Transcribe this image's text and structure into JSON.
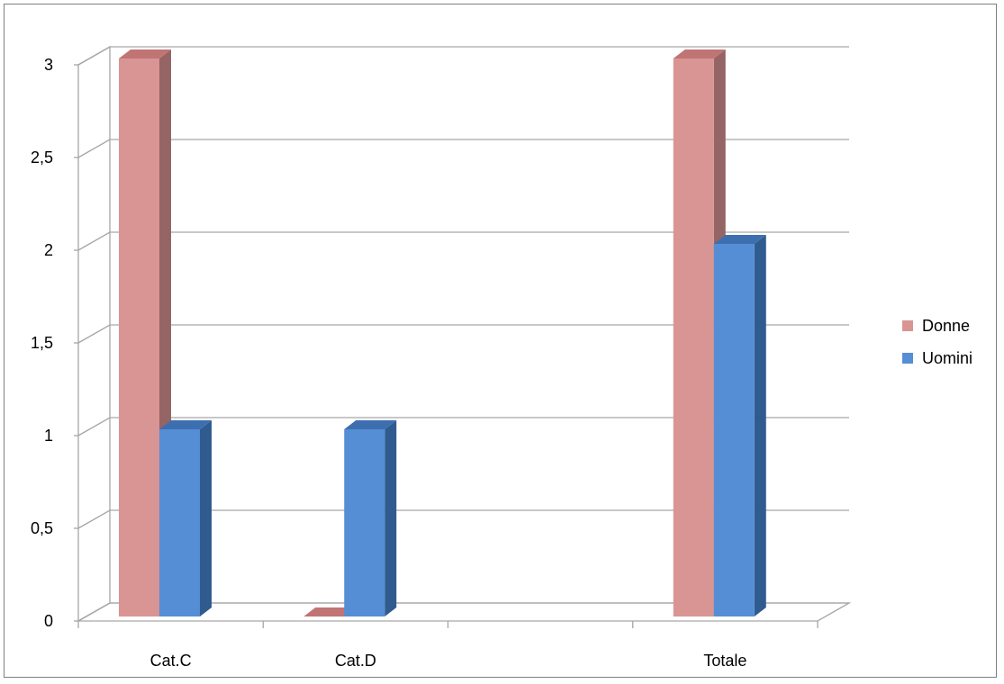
{
  "chart_data": {
    "type": "bar",
    "categories": [
      "Cat.C",
      "Cat.D",
      "",
      "Totale"
    ],
    "series": [
      {
        "name": "Donne",
        "values": [
          3,
          0,
          null,
          3
        ],
        "color": "#d99594",
        "side_color": "#956464",
        "top_color": "#c07473"
      },
      {
        "name": "Uomini",
        "values": [
          1,
          1,
          null,
          2
        ],
        "color": "#558ed5",
        "side_color": "#2f5b8f",
        "top_color": "#3d6fb0"
      }
    ],
    "ylim": [
      0,
      3
    ],
    "yticks": [
      "0",
      "0,5",
      "1",
      "1,5",
      "2",
      "2,5",
      "3"
    ],
    "ytick_values": [
      0,
      0.5,
      1,
      1.5,
      2,
      2.5,
      3
    ],
    "grid": true,
    "legend": "right",
    "three_d": true
  }
}
